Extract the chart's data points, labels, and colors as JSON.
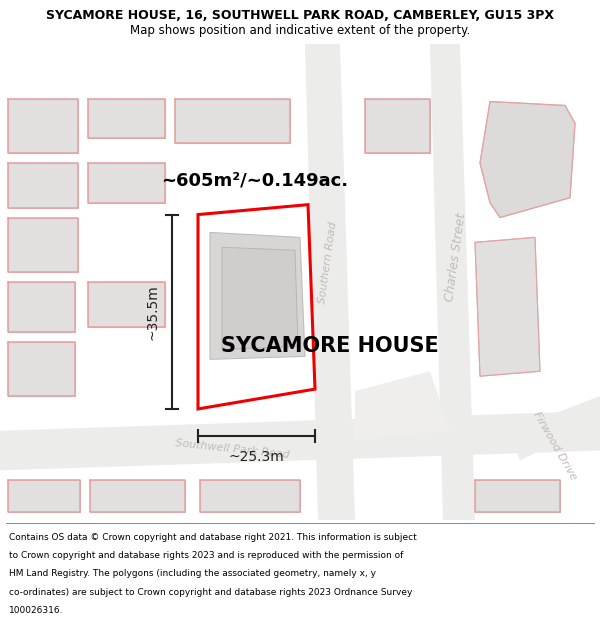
{
  "title": "SYCAMORE HOUSE, 16, SOUTHWELL PARK ROAD, CAMBERLEY, GU15 3PX",
  "subtitle": "Map shows position and indicative extent of the property.",
  "footer_text": "Contains OS data © Crown copyright and database right 2021. This information is subject to Crown copyright and database rights 2023 and is reproduced with the permission of HM Land Registry. The polygons (including the associated geometry, namely x, y co-ordinates) are subject to Crown copyright and database rights 2023 Ordnance Survey 100026316.",
  "map_bg": "#f7f6f4",
  "building_fill": "#e2e0de",
  "building_edge": "#c8c6c4",
  "pink_outline": "#e8a0a0",
  "red_prop": "#ee0000",
  "street_color": "#c0bcb8",
  "dim_color": "#222222",
  "area_label": "~605m²/~0.149ac.",
  "width_label": "~25.3m",
  "height_label": "~35.5m",
  "house_name": "SYCAMORE HOUSE",
  "title_fontsize": 9.0,
  "subtitle_fontsize": 8.5,
  "footer_fontsize": 6.5,
  "area_fontsize": 13,
  "dim_fontsize": 10,
  "house_fontsize": 15,
  "street_fontsize": 9
}
